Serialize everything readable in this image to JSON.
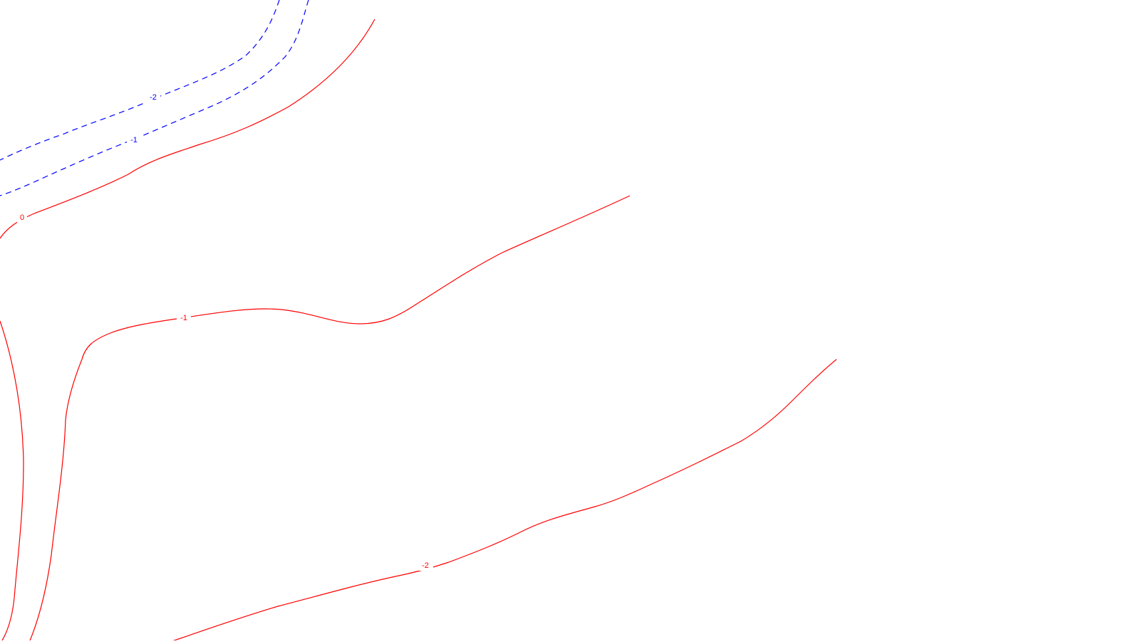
{
  "map": {
    "colors": {
      "positive": "#ff0000",
      "negative": "#0000ff",
      "background": "#ffffff"
    },
    "contours": [
      {
        "id": "neg2",
        "label": "-2",
        "style": "dashed"
      },
      {
        "id": "neg1",
        "label": "-1",
        "style": "dashed"
      },
      {
        "id": "zero",
        "label": "0",
        "style": "solid"
      },
      {
        "id": "minus1",
        "label": "-1",
        "style": "solid"
      },
      {
        "id": "minus2",
        "label": "-2",
        "style": "solid"
      },
      {
        "id": "left1",
        "label": "",
        "style": "solid"
      },
      {
        "id": "left2",
        "label": "",
        "style": "solid"
      }
    ]
  }
}
